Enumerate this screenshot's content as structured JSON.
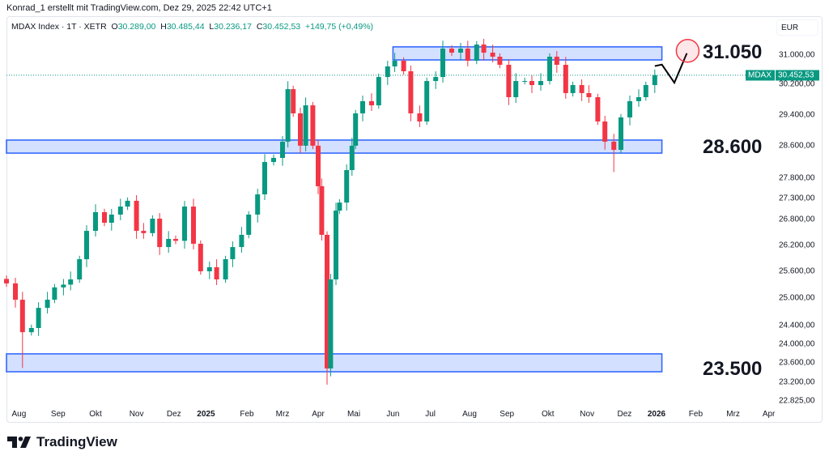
{
  "credit": "Konrad_1 erstellt mit TradingView.com, Dez 29, 2025 22:42 UTC+1",
  "legend": {
    "symbol": "MDAX Index · 1T · XETR",
    "o_label": "O",
    "o": "30.289,00",
    "h_label": "H",
    "h": "30.485,44",
    "l_label": "L",
    "l": "30.236,17",
    "c_label": "C",
    "c": "30.452,53",
    "change": "+149,75 (+0,49%)"
  },
  "currency": "EUR",
  "last_price": {
    "symbol_tag": "MDAX",
    "value_label": "30.452,53",
    "value": 30452.53
  },
  "annotations": [
    {
      "label": "31.050",
      "price": 31050
    },
    {
      "label": "28.600",
      "price": 28600
    },
    {
      "label": "23.500",
      "price": 23500
    }
  ],
  "logo_text": "TradingView",
  "colors": {
    "up": "#089981",
    "down": "#f23645",
    "zone": "#2962ff",
    "circle": "#f23645"
  },
  "chart_data": {
    "type": "candlestick",
    "scale": "log",
    "ylim": [
      22700,
      31700
    ],
    "y_ticks": [
      {
        "v": 31000,
        "label": "31.000,00"
      },
      {
        "v": 30200,
        "label": "30.200,00"
      },
      {
        "v": 29400,
        "label": "29.400,00"
      },
      {
        "v": 28600,
        "label": "28.600,00"
      },
      {
        "v": 27800,
        "label": "27.800,00"
      },
      {
        "v": 27300,
        "label": "27.300,00"
      },
      {
        "v": 26800,
        "label": "26.800,00"
      },
      {
        "v": 26200,
        "label": "26.200,00"
      },
      {
        "v": 25600,
        "label": "25.600,00"
      },
      {
        "v": 25000,
        "label": "25.000,00"
      },
      {
        "v": 24400,
        "label": "24.400,00"
      },
      {
        "v": 24000,
        "label": "24.000,00"
      },
      {
        "v": 23600,
        "label": "23.600,00"
      },
      {
        "v": 23200,
        "label": "23.200,00"
      },
      {
        "v": 22825,
        "label": "22.825,00"
      }
    ],
    "x_ticks": [
      {
        "d": 7,
        "label": "Aug"
      },
      {
        "d": 29,
        "label": "Sep"
      },
      {
        "d": 50,
        "label": "Okt"
      },
      {
        "d": 73,
        "label": "Nov"
      },
      {
        "d": 94,
        "label": "Dez"
      },
      {
        "d": 112,
        "label": "2025",
        "bold": true
      },
      {
        "d": 135,
        "label": "Feb"
      },
      {
        "d": 155,
        "label": "Mrz"
      },
      {
        "d": 175,
        "label": "Apr"
      },
      {
        "d": 195,
        "label": "Mai"
      },
      {
        "d": 217,
        "label": "Jun"
      },
      {
        "d": 238,
        "label": "Jul"
      },
      {
        "d": 260,
        "label": "Aug"
      },
      {
        "d": 281,
        "label": "Sep"
      },
      {
        "d": 304,
        "label": "Okt"
      },
      {
        "d": 326,
        "label": "Nov"
      },
      {
        "d": 347,
        "label": "Dez"
      },
      {
        "d": 365,
        "label": "2026",
        "bold": true
      },
      {
        "d": 387,
        "label": "Feb"
      },
      {
        "d": 408,
        "label": "Mrz"
      },
      {
        "d": 428,
        "label": "Apr"
      }
    ],
    "closes": [
      [
        0,
        25327
      ],
      [
        5,
        24964
      ],
      [
        9,
        24257
      ],
      [
        14,
        24347
      ],
      [
        18,
        24785
      ],
      [
        23,
        24964
      ],
      [
        27,
        25238
      ],
      [
        32,
        25300
      ],
      [
        36,
        25417
      ],
      [
        41,
        25876
      ],
      [
        45,
        26533
      ],
      [
        50,
        26976
      ],
      [
        55,
        26725
      ],
      [
        59,
        26918
      ],
      [
        64,
        27110
      ],
      [
        68,
        27249
      ],
      [
        73,
        26533
      ],
      [
        77,
        26480
      ],
      [
        82,
        26821
      ],
      [
        86,
        26155
      ],
      [
        91,
        26344
      ],
      [
        95,
        26300
      ],
      [
        100,
        27110
      ],
      [
        105,
        26232
      ],
      [
        109,
        25600
      ],
      [
        114,
        25693
      ],
      [
        118,
        25417
      ],
      [
        123,
        25876
      ],
      [
        127,
        26155
      ],
      [
        132,
        26440
      ],
      [
        136,
        26918
      ],
      [
        141,
        27404
      ],
      [
        145,
        28200
      ],
      [
        150,
        28303
      ],
      [
        155,
        28712
      ],
      [
        158,
        30079
      ],
      [
        161,
        29441
      ],
      [
        165,
        28610
      ],
      [
        168,
        29651
      ],
      [
        172,
        28610
      ],
      [
        175,
        27602
      ],
      [
        177,
        26440
      ],
      [
        180,
        23491
      ],
      [
        182,
        25417
      ],
      [
        185,
        27013
      ],
      [
        187,
        27206
      ],
      [
        191,
        27999
      ],
      [
        194,
        28610
      ],
      [
        196,
        29441
      ],
      [
        200,
        29761
      ],
      [
        205,
        29651
      ],
      [
        209,
        30404
      ],
      [
        214,
        30690
      ],
      [
        218,
        30845
      ],
      [
        223,
        30559
      ],
      [
        227,
        29441
      ],
      [
        232,
        29230
      ],
      [
        236,
        30296
      ],
      [
        241,
        30404
      ],
      [
        245,
        31178
      ],
      [
        250,
        31067
      ],
      [
        255,
        31178
      ],
      [
        259,
        30845
      ],
      [
        264,
        31291
      ],
      [
        268,
        31067
      ],
      [
        273,
        30955
      ],
      [
        277,
        30734
      ],
      [
        282,
        29866
      ],
      [
        286,
        30296
      ],
      [
        291,
        30296
      ],
      [
        295,
        30188
      ],
      [
        300,
        30296
      ],
      [
        305,
        30955
      ],
      [
        309,
        30734
      ],
      [
        314,
        29974
      ],
      [
        318,
        30188
      ],
      [
        323,
        29974
      ],
      [
        327,
        29866
      ],
      [
        332,
        29230
      ],
      [
        336,
        28712
      ],
      [
        341,
        28505
      ],
      [
        345,
        29336
      ],
      [
        350,
        29761
      ],
      [
        355,
        29866
      ],
      [
        359,
        30188
      ],
      [
        364,
        30452.53
      ]
    ],
    "wick_lows": {
      "9": 23500,
      "180": 23155,
      "341": 27950
    },
    "zones": [
      {
        "from_day": 217,
        "to_day": 368,
        "top": 31226,
        "bottom": 30867
      },
      {
        "from_day": 0,
        "to_day": 368,
        "top": 28753,
        "bottom": 28423
      },
      {
        "from_day": 0,
        "to_day": 368,
        "top": 23796,
        "bottom": 23422
      }
    ],
    "projection": [
      [
        364,
        30700
      ],
      [
        368,
        30740
      ],
      [
        375,
        30250
      ],
      [
        382,
        31050
      ]
    ]
  }
}
